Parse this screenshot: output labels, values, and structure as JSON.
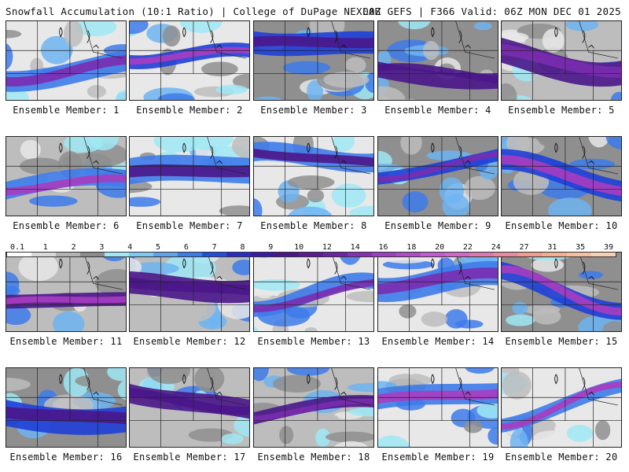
{
  "header": {
    "left": "Snowfall Accumulation (10:1 Ratio) | College of DuPage NEXLAB",
    "right": "00Z GEFS | F366 Valid: 06Z MON DEC 01 2025"
  },
  "panel_label_prefix": "Ensemble Member:",
  "panels": [
    {
      "member": "Ensemble Member: 1"
    },
    {
      "member": "Ensemble Member: 2"
    },
    {
      "member": "Ensemble Member: 3"
    },
    {
      "member": "Ensemble Member: 4"
    },
    {
      "member": "Ensemble Member: 5"
    },
    {
      "member": "Ensemble Member: 6"
    },
    {
      "member": "Ensemble Member: 7"
    },
    {
      "member": "Ensemble Member: 8"
    },
    {
      "member": "Ensemble Member: 9"
    },
    {
      "member": "Ensemble Member: 10"
    },
    {
      "member": "Ensemble Member: 11"
    },
    {
      "member": "Ensemble Member: 12"
    },
    {
      "member": "Ensemble Member: 13"
    },
    {
      "member": "Ensemble Member: 14"
    },
    {
      "member": "Ensemble Member: 15"
    },
    {
      "member": "Ensemble Member: 16"
    },
    {
      "member": "Ensemble Member: 17"
    },
    {
      "member": "Ensemble Member: 18"
    },
    {
      "member": "Ensemble Member: 19"
    },
    {
      "member": "Ensemble Member: 20"
    }
  ],
  "colorbar": {
    "ticks": [
      "0.1",
      "1",
      "2",
      "3",
      "4",
      "5",
      "6",
      "7",
      "8",
      "9",
      "10",
      "12",
      "14",
      "16",
      "18",
      "20",
      "22",
      "24",
      "27",
      "31",
      "35",
      "39"
    ],
    "colors": [
      "#ffffff",
      "#d9d9d9",
      "#b3b3b3",
      "#8c8c8c",
      "#9fe9f5",
      "#7fc9f5",
      "#5fa4f0",
      "#3e7bea",
      "#1f4fe0",
      "#2a2acc",
      "#3a1aa8",
      "#4a168a",
      "#5c1a94",
      "#6e22a8",
      "#8630b8",
      "#9e3ec2",
      "#b04cc9",
      "#c45ad2",
      "#d068c8",
      "#de78b4",
      "#e88aa0",
      "#f09c90",
      "#f4ae90",
      "#f6c0a0",
      "#f8d0b2"
    ],
    "shaded_fields_in_panels": [
      "#e8e8e8",
      "#bdbdbd",
      "#8f8f8f",
      "#9fe9f5",
      "#6fb4f2",
      "#3e7bea",
      "#1f3fd8",
      "#4a168a",
      "#7a2cb0",
      "#a83cc0",
      "#c85ad0",
      "#f4c890"
    ]
  }
}
